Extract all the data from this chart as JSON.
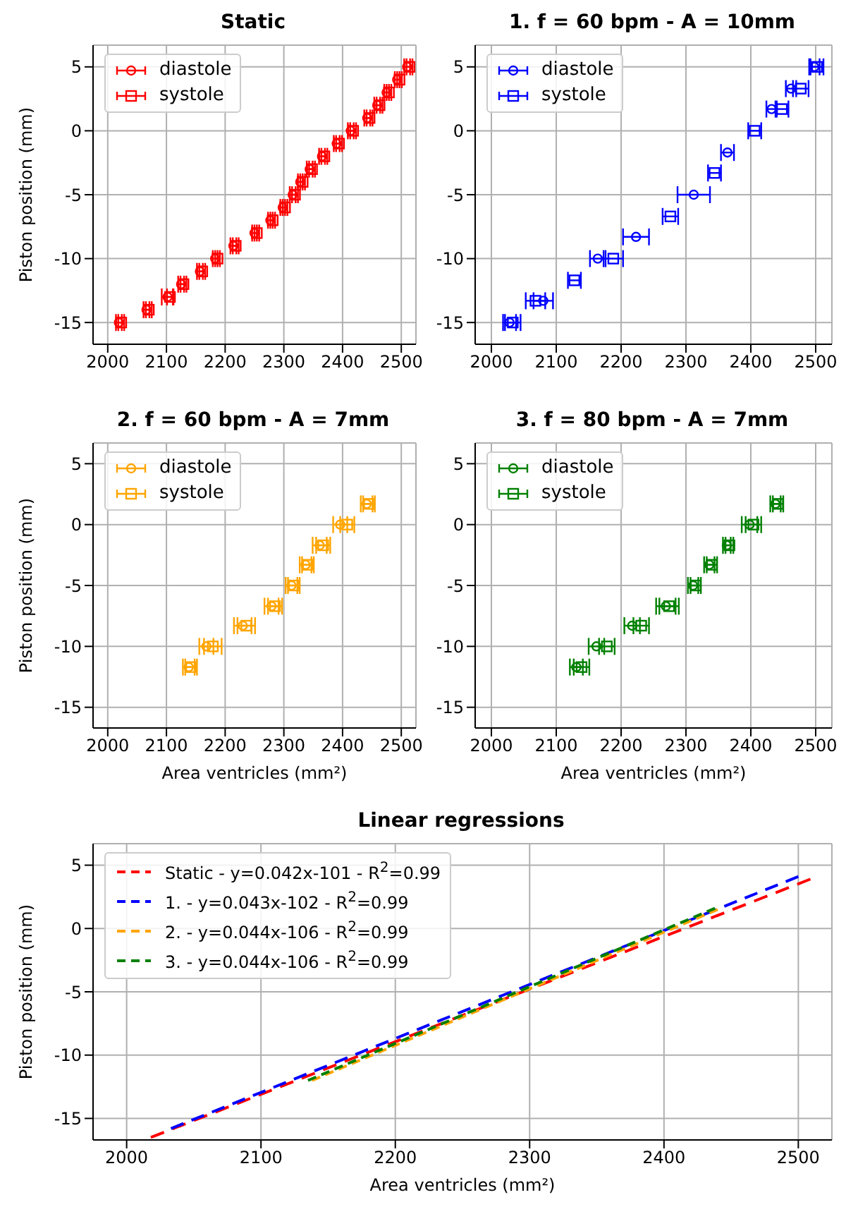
{
  "chart_data": [
    {
      "type": "scatter",
      "title": "Static",
      "ylabel": "Piston position (mm)",
      "xlim": [
        1975,
        2525
      ],
      "xticks": [
        2000,
        2100,
        2200,
        2300,
        2400,
        2500
      ],
      "ylim": [
        -16.7,
        6.7
      ],
      "yticks": [
        -15,
        -10,
        -5,
        0,
        5
      ],
      "grid": true,
      "legend": "top left",
      "series": [
        {
          "name": "diastole",
          "color": "#ff0000",
          "marker": "circle",
          "x": [
            2019,
            2066,
            2102,
            2125,
            2157,
            2183,
            2214,
            2250,
            2277,
            2298,
            2315,
            2328,
            2344,
            2365,
            2390,
            2414,
            2442,
            2459,
            2475,
            2493,
            2510
          ],
          "values": [
            -15,
            -14,
            -13,
            -12,
            -11,
            -10,
            -9,
            -8,
            -7,
            -6,
            -5,
            -4,
            -3,
            -2,
            -1,
            0,
            1,
            2,
            3,
            4,
            5
          ],
          "xerrors": [
            5,
            5,
            10,
            5,
            5,
            4,
            5,
            4,
            4,
            4,
            5,
            4,
            5,
            5,
            5,
            5,
            5,
            5,
            4,
            4,
            5
          ]
        },
        {
          "name": "systole",
          "color": "#ff0000",
          "marker": "square",
          "x": [
            2023,
            2070,
            2106,
            2129,
            2161,
            2187,
            2218,
            2254,
            2281,
            2302,
            2319,
            2332,
            2348,
            2369,
            2394,
            2418,
            2446,
            2463,
            2479,
            2497,
            2514
          ],
          "values": [
            -15,
            -14,
            -13,
            -12,
            -11,
            -10,
            -9,
            -8,
            -7,
            -6,
            -5,
            -4,
            -3,
            -2,
            -1,
            0,
            1,
            2,
            3,
            4,
            5
          ],
          "xerrors": [
            5,
            5,
            5,
            5,
            5,
            4,
            5,
            4,
            4,
            4,
            5,
            4,
            5,
            5,
            5,
            5,
            5,
            5,
            4,
            4,
            5
          ]
        }
      ]
    },
    {
      "type": "scatter",
      "title": "1. f = 60 bpm - A = 10mm",
      "xlim": [
        1975,
        2525
      ],
      "xticks": [
        2000,
        2100,
        2200,
        2300,
        2400,
        2500
      ],
      "ylim": [
        -16.7,
        6.7
      ],
      "yticks": [
        -15,
        -10,
        -5,
        0,
        5
      ],
      "grid": true,
      "legend": "top left",
      "series": [
        {
          "name": "diastole",
          "color": "#0000ff",
          "marker": "circle",
          "x": [
            2028,
            2080,
            2164,
            2223,
            2312,
            2364,
            2432,
            2462,
            2498
          ],
          "values": [
            -15,
            -13.3,
            -10,
            -8.3,
            -5,
            -1.7,
            1.7,
            3.3,
            5
          ],
          "xerrors": [
            10,
            15,
            12,
            20,
            25,
            10,
            8,
            8,
            8
          ]
        },
        {
          "name": "systole",
          "color": "#0000ff",
          "marker": "square",
          "x": [
            2033,
            2068,
            2128,
            2188,
            2276,
            2344,
            2406,
            2448,
            2477,
            2502
          ],
          "values": [
            -15,
            -13.3,
            -11.7,
            -10,
            -6.7,
            -3.3,
            0,
            1.7,
            3.3,
            5
          ],
          "xerrors": [
            12,
            15,
            10,
            15,
            12,
            10,
            10,
            10,
            12,
            10
          ]
        }
      ]
    },
    {
      "type": "scatter",
      "title": "2. f = 60 bpm - A = 7mm",
      "xlabel": "Area ventricles (mm²)",
      "ylabel": "Piston position (mm)",
      "xlim": [
        1975,
        2525
      ],
      "xticks": [
        2000,
        2100,
        2200,
        2300,
        2400,
        2500
      ],
      "ylim": [
        -16.7,
        6.7
      ],
      "yticks": [
        -15,
        -10,
        -5,
        0,
        5
      ],
      "grid": true,
      "legend": "top left",
      "series": [
        {
          "name": "diastole",
          "color": "#ffa500",
          "marker": "circle",
          "x": [
            2138,
            2168,
            2230,
            2279,
            2313,
            2337,
            2361,
            2396,
            2441
          ],
          "values": [
            -11.7,
            -10,
            -8.3,
            -6.7,
            -5,
            -3.3,
            -1.7,
            0,
            1.7
          ],
          "xerrors": [
            10,
            12,
            15,
            12,
            10,
            10,
            12,
            12,
            10
          ]
        },
        {
          "name": "systole",
          "color": "#ffa500",
          "marker": "square",
          "x": [
            2142,
            2179,
            2236,
            2285,
            2317,
            2341,
            2367,
            2408,
            2445
          ],
          "values": [
            -11.7,
            -10,
            -8.3,
            -6.7,
            -5,
            -3.3,
            -1.7,
            0,
            1.7
          ],
          "xerrors": [
            10,
            15,
            15,
            12,
            10,
            10,
            12,
            12,
            10
          ]
        }
      ]
    },
    {
      "type": "scatter",
      "title": "3. f = 80 bpm - A = 7mm",
      "xlabel": "Area ventricles (mm²)",
      "xlim": [
        1975,
        2525
      ],
      "xticks": [
        2000,
        2100,
        2200,
        2300,
        2400,
        2500
      ],
      "ylim": [
        -16.7,
        6.7
      ],
      "yticks": [
        -15,
        -10,
        -5,
        0,
        5
      ],
      "grid": true,
      "legend": "top left",
      "series": [
        {
          "name": "diastole",
          "color": "#008000",
          "marker": "circle",
          "x": [
            2131,
            2162,
            2217,
            2269,
            2311,
            2336,
            2363,
            2398,
            2438
          ],
          "values": [
            -11.7,
            -10,
            -8.3,
            -6.7,
            -5,
            -3.3,
            -1.7,
            0,
            1.7
          ],
          "xerrors": [
            10,
            12,
            12,
            15,
            8,
            8,
            6,
            12,
            8
          ]
        },
        {
          "name": "systole",
          "color": "#008000",
          "marker": "square",
          "x": [
            2139,
            2178,
            2231,
            2274,
            2315,
            2340,
            2367,
            2404,
            2442
          ],
          "values": [
            -11.7,
            -10,
            -8.3,
            -6.7,
            -5,
            -3.3,
            -1.7,
            0,
            1.7
          ],
          "xerrors": [
            12,
            12,
            12,
            15,
            8,
            8,
            6,
            12,
            8
          ]
        }
      ]
    },
    {
      "type": "line",
      "title": "Linear regressions",
      "xlabel": "Area ventricles (mm²)",
      "ylabel": "Piston position (mm)",
      "xlim": [
        1975,
        2525
      ],
      "xticks": [
        2000,
        2100,
        2200,
        2300,
        2400,
        2500
      ],
      "ylim": [
        -16.7,
        6.7
      ],
      "yticks": [
        -15,
        -10,
        -5,
        0,
        5
      ],
      "grid": true,
      "legend": "top left",
      "line_style": "dashed",
      "marker": "none",
      "series": [
        {
          "name": "Static - y=0.042x-101 - R$^{2}$=0.99",
          "color": "#ff0000",
          "x": [
            2018,
            2509
          ],
          "values": [
            -16.5,
            3.9
          ]
        },
        {
          "name": "1. - y=0.043x-102 - R$^{2}$=0.99",
          "color": "#0000ff",
          "x": [
            2033,
            2500
          ],
          "values": [
            -15.8,
            4.1
          ]
        },
        {
          "name": "2. - y=0.044x-106 - R$^{2}$=0.99",
          "color": "#ffa500",
          "x": [
            2138,
            2440
          ],
          "values": [
            -12,
            1.5
          ]
        },
        {
          "name": "3. - y=0.044x-106 - R$^{2}$=0.99",
          "color": "#008000",
          "x": [
            2135,
            2438
          ],
          "values": [
            -12,
            1.6
          ]
        }
      ]
    }
  ]
}
